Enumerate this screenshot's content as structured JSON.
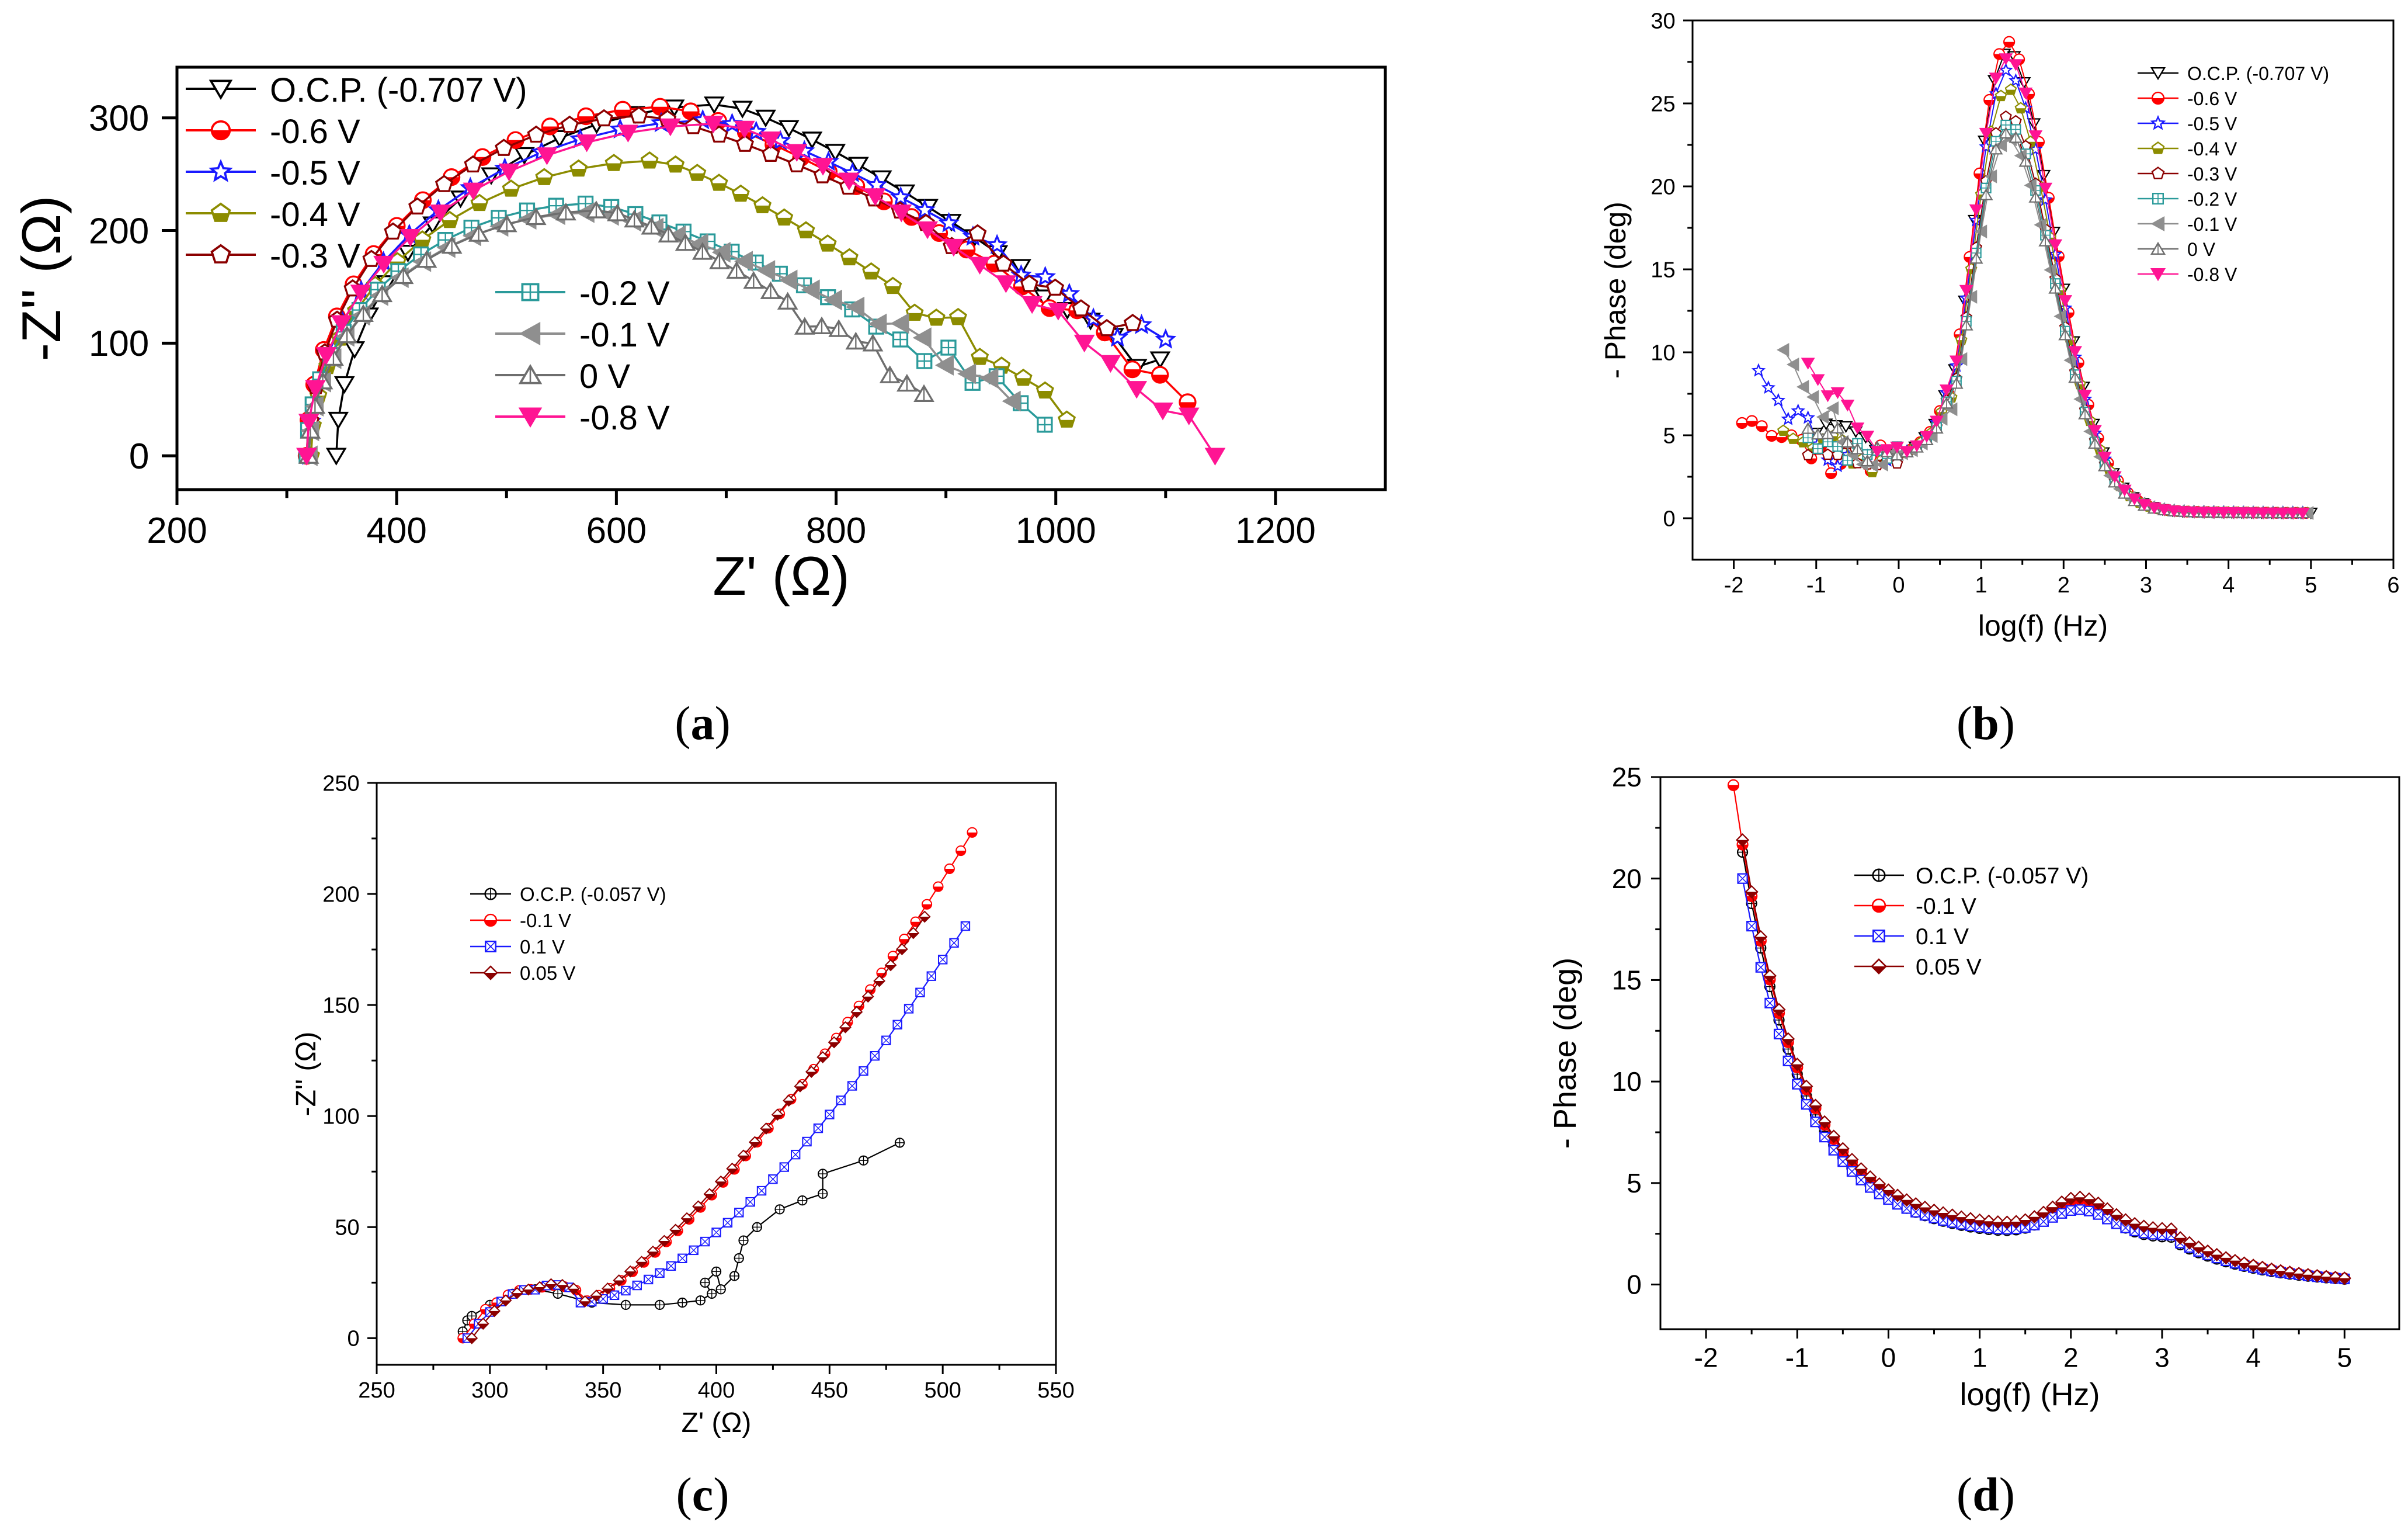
{
  "colors": {
    "black": "#000000",
    "red": "#ff0000",
    "blue": "#1a1aff",
    "olive": "#8c8c00",
    "darkred": "#8b0000",
    "teal": "#2a9a9a",
    "gray": "#8f8f8f",
    "dimgray": "#6e6e6e",
    "magenta": "#ff1493"
  },
  "chart_data": [
    {
      "id": "a",
      "type": "scatter",
      "caption": "a",
      "xlabel": "Z' (Ω)",
      "ylabel": "-Z'' (Ω)",
      "xlim": [
        200,
        1300
      ],
      "ylim": [
        -30,
        345
      ],
      "xticks": [
        "200",
        "400",
        "600",
        "800",
        "1000",
        "1200"
      ],
      "yticks": [
        "0",
        "100",
        "200",
        "300"
      ],
      "legend_main": [
        {
          "name": "O.C.P. (-0.707 V)",
          "color": "#000000",
          "marker": "tri-down-open"
        },
        {
          "name": "-0.6 V",
          "color": "#ff0000",
          "marker": "circle-half"
        },
        {
          "name": "-0.5 V",
          "color": "#1a1aff",
          "marker": "star-open"
        },
        {
          "name": "-0.4 V",
          "color": "#8c8c00",
          "marker": "pentagon-half"
        },
        {
          "name": "-0.3 V",
          "color": "#8b0000",
          "marker": "pentagon-open"
        }
      ],
      "legend_sub": [
        {
          "name": "-0.2 V",
          "color": "#2a9a9a",
          "marker": "square-cross"
        },
        {
          "name": "-0.1 V",
          "color": "#8f8f8f",
          "marker": "tri-left"
        },
        {
          "name": "0 V",
          "color": "#6e6e6e",
          "marker": "tri-up-open"
        },
        {
          "name": "-0.8 V",
          "color": "#ff1493",
          "marker": "tri-down-fill"
        }
      ],
      "series": [
        {
          "name": "O.C.P. (-0.707 V)",
          "color": "#000000",
          "marker": "tri-down-open",
          "peak": [
            700,
            312
          ],
          "start": [
            345,
            0
          ],
          "end": [
            1095,
            75
          ]
        },
        {
          "name": "-0.6 V",
          "color": "#ff0000",
          "marker": "circle-half",
          "peak": [
            650,
            310
          ],
          "start": [
            318,
            0
          ],
          "end": [
            1120,
            55
          ]
        },
        {
          "name": "-0.5 V",
          "color": "#1a1aff",
          "marker": "star-open",
          "peak": [
            690,
            298
          ],
          "start": [
            320,
            0
          ],
          "end": [
            1100,
            90
          ]
        },
        {
          "name": "-0.4 V",
          "color": "#8c8c00",
          "marker": "pentagon-half",
          "peak": [
            640,
            262
          ],
          "start": [
            322,
            0
          ],
          "end": [
            1010,
            38
          ]
        },
        {
          "name": "-0.3 V",
          "color": "#8b0000",
          "marker": "pentagon-open",
          "peak": [
            630,
            302
          ],
          "start": [
            320,
            0
          ],
          "end": [
            1070,
            110
          ]
        },
        {
          "name": "-0.2 V",
          "color": "#2a9a9a",
          "marker": "square-cross",
          "peak": [
            580,
            224
          ],
          "start": [
            318,
            0
          ],
          "end": [
            990,
            35
          ]
        },
        {
          "name": "-0.1 V",
          "color": "#8f8f8f",
          "marker": "tri-left",
          "peak": [
            580,
            216
          ],
          "start": [
            320,
            0
          ],
          "end": [
            960,
            60
          ]
        },
        {
          "name": "0 V",
          "color": "#6e6e6e",
          "marker": "tri-up-open",
          "peak": [
            590,
            218
          ],
          "start": [
            320,
            0
          ],
          "end": [
            880,
            55
          ]
        },
        {
          "name": "-0.8 V",
          "color": "#ff1493",
          "marker": "tri-down-fill",
          "peak": [
            700,
            295
          ],
          "start": [
            318,
            0
          ],
          "end": [
            1145,
            10
          ]
        }
      ]
    },
    {
      "id": "b",
      "type": "scatter",
      "caption": "b",
      "xlabel": "log(f) (Hz)",
      "ylabel": "- Phase (deg)",
      "xlim": [
        -2.5,
        6
      ],
      "ylim": [
        -2.5,
        30
      ],
      "xticks": [
        "-2",
        "-1",
        "0",
        "1",
        "2",
        "3",
        "4",
        "5",
        "6"
      ],
      "yticks": [
        "0",
        "5",
        "10",
        "15",
        "20",
        "25",
        "30"
      ],
      "legend": [
        {
          "name": "O.C.P. (-0.707 V)",
          "color": "#000000",
          "marker": "tri-down-open"
        },
        {
          "name": "-0.6 V",
          "color": "#ff0000",
          "marker": "circle-half"
        },
        {
          "name": "-0.5 V",
          "color": "#1a1aff",
          "marker": "star-open"
        },
        {
          "name": "-0.4 V",
          "color": "#8c8c00",
          "marker": "pentagon-half"
        },
        {
          "name": "-0.3 V",
          "color": "#8b0000",
          "marker": "pentagon-open"
        },
        {
          "name": "-0.2 V",
          "color": "#2a9a9a",
          "marker": "square-cross"
        },
        {
          "name": "-0.1 V",
          "color": "#8f8f8f",
          "marker": "tri-left"
        },
        {
          "name": "0 V",
          "color": "#6e6e6e",
          "marker": "tri-up-open"
        },
        {
          "name": "-0.8 V",
          "color": "#ff1493",
          "marker": "tri-down-fill"
        }
      ],
      "series": [
        {
          "name": "O.C.P. (-0.707 V)",
          "color": "#000000",
          "marker": "tri-down-open",
          "start": [
            -1.0,
            5.5
          ],
          "peak": [
            1.3,
            27.3
          ]
        },
        {
          "name": "-0.6 V",
          "color": "#ff0000",
          "marker": "circle-half",
          "start": [
            -1.9,
            6.5
          ],
          "peak": [
            1.3,
            27.8
          ]
        },
        {
          "name": "-0.5 V",
          "color": "#1a1aff",
          "marker": "star-open",
          "start": [
            -1.7,
            8.3
          ],
          "peak": [
            1.3,
            26.0
          ]
        },
        {
          "name": "-0.4 V",
          "color": "#8c8c00",
          "marker": "pentagon-half",
          "start": [
            -1.4,
            5.8
          ],
          "peak": [
            1.3,
            25.0
          ]
        },
        {
          "name": "-0.3 V",
          "color": "#8b0000",
          "marker": "pentagon-open",
          "start": [
            -1.1,
            4.5
          ],
          "peak": [
            1.3,
            23.5
          ]
        },
        {
          "name": "-0.2 V",
          "color": "#2a9a9a",
          "marker": "square-cross",
          "start": [
            -1.1,
            5.0
          ],
          "peak": [
            1.3,
            23.0
          ]
        },
        {
          "name": "-0.1 V",
          "color": "#8f8f8f",
          "marker": "tri-left",
          "start": [
            -1.4,
            9.8
          ],
          "peak": [
            1.3,
            22.0
          ]
        },
        {
          "name": "0 V",
          "color": "#6e6e6e",
          "marker": "tri-up-open",
          "start": [
            -1.1,
            5.5
          ],
          "peak": [
            1.3,
            22.5
          ]
        },
        {
          "name": "-0.8 V",
          "color": "#ff1493",
          "marker": "tri-down-fill",
          "start": [
            -1.1,
            8.7
          ],
          "peak": [
            1.3,
            27.0
          ]
        }
      ]
    },
    {
      "id": "c",
      "type": "scatter",
      "caption": "c",
      "xlabel": "Z' (Ω)",
      "ylabel": "-Z'' (Ω)",
      "xlim": [
        250,
        550
      ],
      "ylim": [
        -12,
        250
      ],
      "xticks": [
        "250",
        "300",
        "350",
        "400",
        "450",
        "500",
        "550"
      ],
      "yticks": [
        "0",
        "50",
        "100",
        "150",
        "200",
        "250"
      ],
      "legend": [
        {
          "name": "O.C.P. (-0.057 V)",
          "color": "#000000",
          "marker": "circle-cross"
        },
        {
          "name": "-0.1 V",
          "color": "#ff0000",
          "marker": "circle-half"
        },
        {
          "name": "0.1 V",
          "color": "#1a1aff",
          "marker": "square-x"
        },
        {
          "name": "0.05 V",
          "color": "#8b0000",
          "marker": "diamond-half"
        }
      ],
      "series": [
        {
          "name": "O.C.P. (-0.057 V)",
          "color": "#000000",
          "marker": "circle-cross",
          "end": [
            481,
            88
          ]
        },
        {
          "name": "-0.1 V",
          "color": "#ff0000",
          "marker": "circle-half",
          "end": [
            515,
            231
          ]
        },
        {
          "name": "0.1 V",
          "color": "#1a1aff",
          "marker": "square-x",
          "end": [
            510,
            183
          ]
        },
        {
          "name": "0.05 V",
          "color": "#8b0000",
          "marker": "diamond-half",
          "end": [
            493,
            191
          ]
        }
      ]
    },
    {
      "id": "d",
      "type": "scatter",
      "caption": "d",
      "xlabel": "log(f) (Hz)",
      "ylabel": "- Phase (deg)",
      "xlim": [
        -2.5,
        5.6
      ],
      "ylim": [
        -2.2,
        25
      ],
      "xticks": [
        "-2",
        "-1",
        "0",
        "1",
        "2",
        "3",
        "4",
        "5"
      ],
      "yticks": [
        "0",
        "5",
        "10",
        "15",
        "20",
        "25"
      ],
      "legend": [
        {
          "name": "O.C.P. (-0.057 V)",
          "color": "#000000",
          "marker": "circle-cross"
        },
        {
          "name": "-0.1 V",
          "color": "#ff0000",
          "marker": "circle-half"
        },
        {
          "name": "0.1 V",
          "color": "#1a1aff",
          "marker": "square-x"
        },
        {
          "name": "0.05 V",
          "color": "#8b0000",
          "marker": "diamond-half"
        }
      ],
      "series": [
        {
          "name": "O.C.P. (-0.057 V)",
          "color": "#000000",
          "marker": "circle-cross",
          "start": [
            -1.6,
            21.0
          ],
          "bump": [
            2.1,
            3.8
          ],
          "trough": 2.3
        },
        {
          "name": "-0.1 V",
          "color": "#ff0000",
          "marker": "circle-half",
          "start": [
            -1.7,
            24.0
          ],
          "bump": [
            2.1,
            4.1
          ],
          "trough": 2.6
        },
        {
          "name": "0.1 V",
          "color": "#1a1aff",
          "marker": "square-x",
          "start": [
            -1.6,
            19.6
          ],
          "bump": [
            2.1,
            3.6
          ],
          "trough": 2.4
        },
        {
          "name": "0.05 V",
          "color": "#8b0000",
          "marker": "diamond-half",
          "start": [
            -1.6,
            21.2
          ],
          "bump": [
            2.1,
            4.2
          ],
          "trough": 2.7
        }
      ]
    }
  ]
}
